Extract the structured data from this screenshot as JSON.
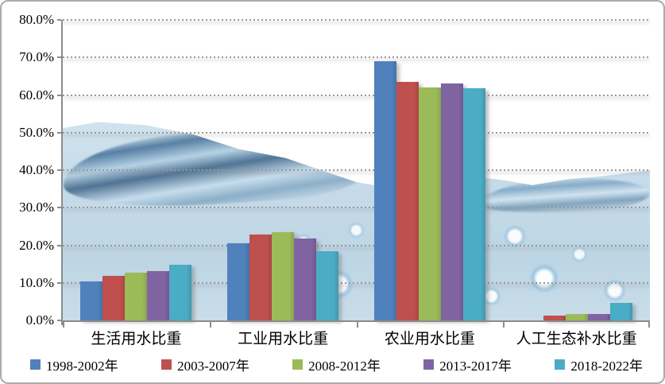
{
  "chart_data": {
    "type": "bar",
    "title": "",
    "categories": [
      "生活用水比重",
      "工业用水比重",
      "农业用水比重",
      "人工生态补水比重"
    ],
    "series": [
      {
        "name": "1998-2002年",
        "color": "#4F81BD",
        "values": [
          10.4,
          20.5,
          68.9,
          0.0
        ]
      },
      {
        "name": "2003-2007年",
        "color": "#C0504D",
        "values": [
          11.9,
          22.8,
          63.5,
          1.2
        ]
      },
      {
        "name": "2008-2012年",
        "color": "#9BBB59",
        "values": [
          12.6,
          23.4,
          62.1,
          1.6
        ]
      },
      {
        "name": "2013-2017年",
        "color": "#8064A2",
        "values": [
          13.1,
          21.9,
          63.0,
          1.8
        ]
      },
      {
        "name": "2018-2022年",
        "color": "#4BACC6",
        "values": [
          14.9,
          18.5,
          61.9,
          4.7
        ]
      }
    ],
    "ylim": [
      0,
      80
    ],
    "ytick_step": 10,
    "ytick_labels": [
      "0.0%",
      "10.0%",
      "20.0%",
      "30.0%",
      "40.0%",
      "50.0%",
      "60.0%",
      "70.0%",
      "80.0%"
    ],
    "xlabel": "",
    "ylabel": "",
    "grid": "dotted-horizontal",
    "legend_position": "bottom",
    "background": "water-photo"
  },
  "colors": {
    "axis": "#8c8c8c",
    "gridline": "#979797",
    "text": "#000000",
    "frame_border": "#ababab"
  }
}
